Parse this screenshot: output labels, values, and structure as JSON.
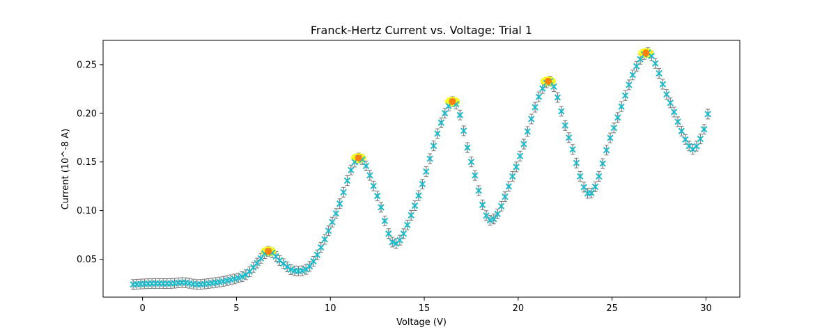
{
  "chart_data": {
    "type": "scatter",
    "title": "Franck-Hertz Current vs. Voltage: Trial 1",
    "xlabel": "Voltage (V)",
    "ylabel": "Current (10^-8 A)",
    "xlim": [
      -2.1,
      31.8
    ],
    "ylim": [
      0.011,
      0.275
    ],
    "xticks": [
      0,
      5,
      10,
      15,
      20,
      25,
      30
    ],
    "yticks": [
      0.05,
      0.1,
      0.15,
      0.2,
      0.25
    ],
    "ytick_labels": [
      "0.05",
      "0.10",
      "0.15",
      "0.20",
      "0.25"
    ],
    "grid": false,
    "legend": "none",
    "curve": {
      "x_range": [
        -0.5,
        30.2
      ],
      "x_step": 0.2,
      "knots": [
        [
          -0.5,
          0.024
        ],
        [
          0.5,
          0.025
        ],
        [
          1.5,
          0.025
        ],
        [
          2.2,
          0.026
        ],
        [
          2.9,
          0.024
        ],
        [
          3.5,
          0.025
        ],
        [
          4.5,
          0.028
        ],
        [
          5.5,
          0.034
        ],
        [
          6.1,
          0.046
        ],
        [
          6.7,
          0.058
        ],
        [
          7.4,
          0.047
        ],
        [
          8.1,
          0.038
        ],
        [
          9.0,
          0.045
        ],
        [
          10.3,
          0.097
        ],
        [
          11.5,
          0.154
        ],
        [
          12.5,
          0.115
        ],
        [
          13.4,
          0.066
        ],
        [
          14.5,
          0.105
        ],
        [
          16.5,
          0.212
        ],
        [
          17.5,
          0.15
        ],
        [
          18.5,
          0.09
        ],
        [
          19.8,
          0.14
        ],
        [
          21.6,
          0.233
        ],
        [
          22.7,
          0.175
        ],
        [
          23.8,
          0.117
        ],
        [
          25.0,
          0.18
        ],
        [
          26.8,
          0.262
        ],
        [
          28.0,
          0.215
        ],
        [
          29.2,
          0.164
        ],
        [
          29.8,
          0.178
        ],
        [
          30.2,
          0.207
        ]
      ]
    },
    "peaks": [
      {
        "x": 6.7,
        "y": 0.058
      },
      {
        "x": 11.5,
        "y": 0.154
      },
      {
        "x": 16.5,
        "y": 0.212
      },
      {
        "x": 21.6,
        "y": 0.233
      },
      {
        "x": 26.8,
        "y": 0.262
      }
    ],
    "colors": {
      "data_marker": "#17becf",
      "error_bar": "#808080",
      "peak_marker": "#ff7f0e",
      "peak_halo": "#ffff00",
      "axes": "#000000"
    }
  }
}
